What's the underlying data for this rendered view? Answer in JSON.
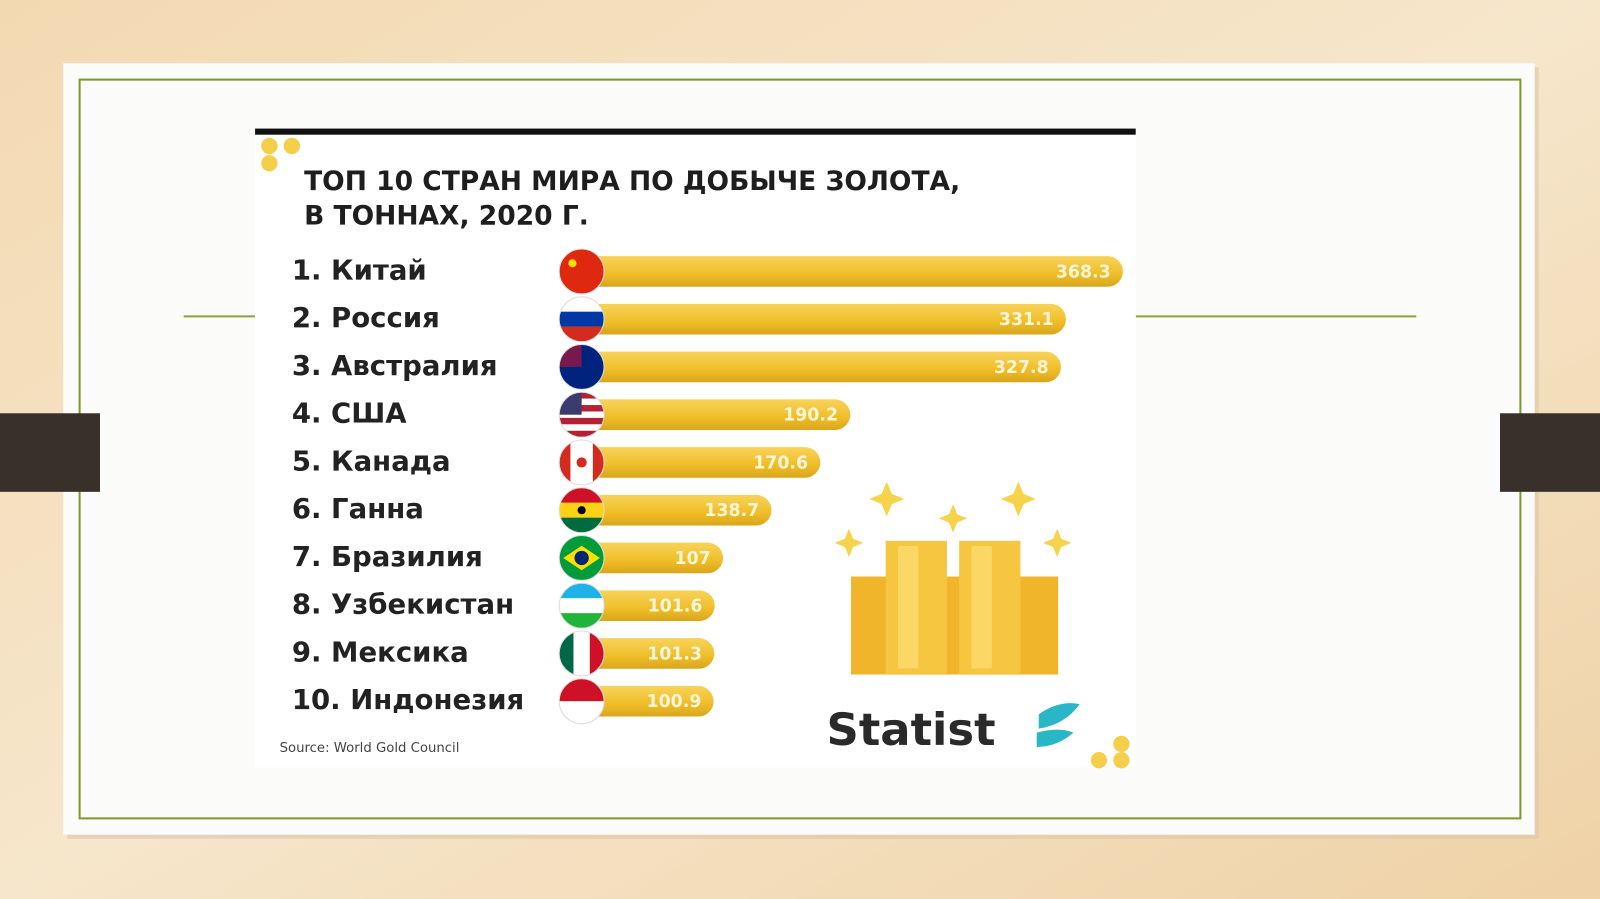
{
  "chart_data": {
    "type": "bar",
    "orientation": "horizontal",
    "title": [
      "ТОП 10 СТРАН МИРА ПО ДОБЫЧЕ ЗОЛОТА,",
      "В ТОННАХ, 2020 Г."
    ],
    "categories": [
      "1. Китай",
      "2. Россия",
      "3. Австралия",
      "4. США",
      "5. Канада",
      "6. Ганна",
      "7. Бразилия",
      "8. Узбекистан",
      "9. Мексика",
      "10. Индонезия"
    ],
    "values": [
      368.3,
      331.1,
      327.8,
      190.2,
      170.6,
      138.7,
      107.0,
      101.6,
      101.3,
      100.9
    ],
    "color": "#f2c230",
    "source": "Source: World Gold Council",
    "logo": "Statist"
  }
}
